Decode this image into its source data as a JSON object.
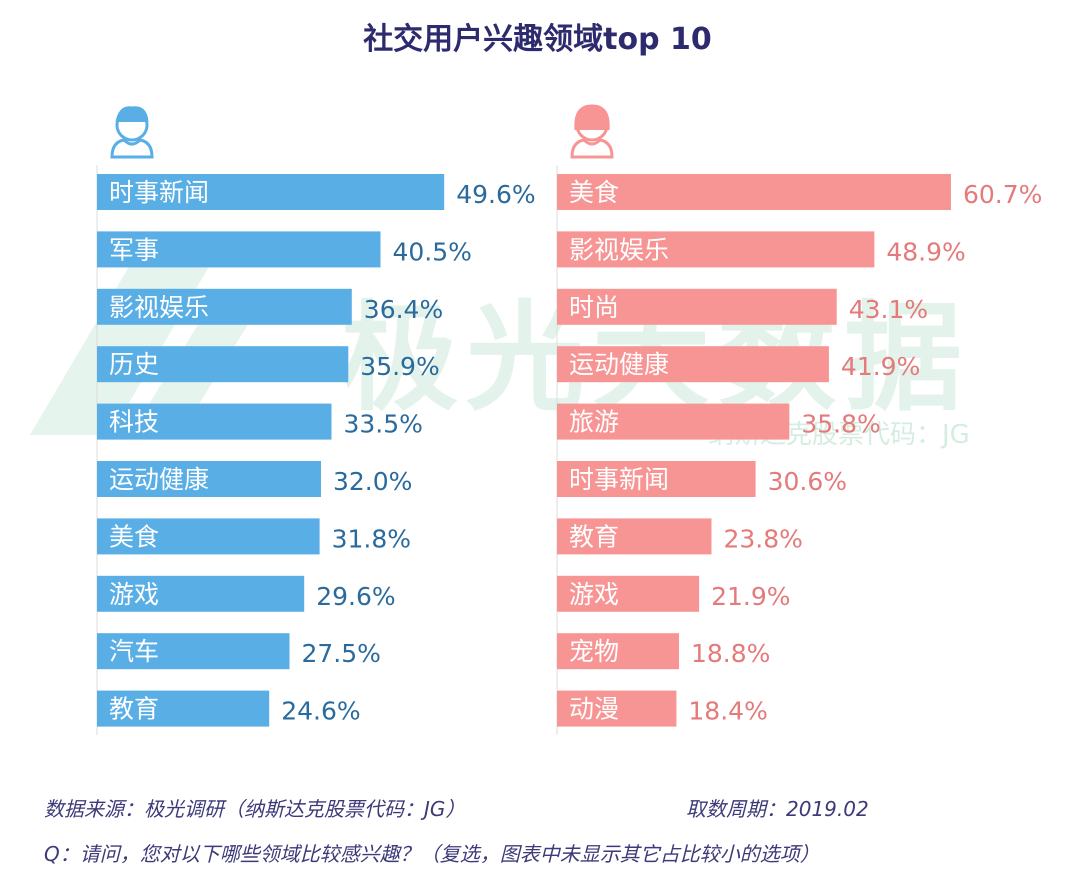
{
  "title": "社交用户兴趣领域top 10",
  "watermark": {
    "brand": "极光大数据",
    "sub": "纳斯达克股票代码：JG"
  },
  "colors": {
    "male": "#5aaee6",
    "male_text": "#2a6a9c",
    "female": "#f79595",
    "female_text": "#e57a7a",
    "title": "#2d2b6e"
  },
  "chart_data": [
    {
      "type": "bar",
      "orientation": "horizontal",
      "icon": "male-user-icon",
      "unit": "%",
      "categories": [
        "时事新闻",
        "军事",
        "影视娱乐",
        "历史",
        "科技",
        "运动健康",
        "美食",
        "游戏",
        "汽车",
        "教育"
      ],
      "values": [
        49.6,
        40.5,
        36.4,
        35.9,
        33.5,
        32.0,
        31.8,
        29.6,
        27.5,
        24.6
      ],
      "labels": [
        "49.6%",
        "40.5%",
        "36.4%",
        "35.9%",
        "33.5%",
        "32.0%",
        "31.8%",
        "29.6%",
        "27.5%",
        "24.6%"
      ]
    },
    {
      "type": "bar",
      "orientation": "horizontal",
      "icon": "female-user-icon",
      "unit": "%",
      "categories": [
        "美食",
        "影视娱乐",
        "时尚",
        "运动健康",
        "旅游",
        "时事新闻",
        "教育",
        "游戏",
        "宠物",
        "动漫"
      ],
      "values": [
        60.7,
        48.9,
        43.1,
        41.9,
        35.8,
        30.6,
        23.8,
        21.9,
        18.8,
        18.4
      ],
      "labels": [
        "60.7%",
        "48.9%",
        "43.1%",
        "41.9%",
        "35.8%",
        "30.6%",
        "23.8%",
        "21.9%",
        "18.8%",
        "18.4%"
      ]
    }
  ],
  "footer": {
    "source": "数据来源：极光调研（纳斯达克股票代码：JG）",
    "period": "取数周期：2019.02",
    "question": "Q：请问，您对以下哪些领域比较感兴趣？（复选，图表中未显示其它占比较小的选项）"
  }
}
